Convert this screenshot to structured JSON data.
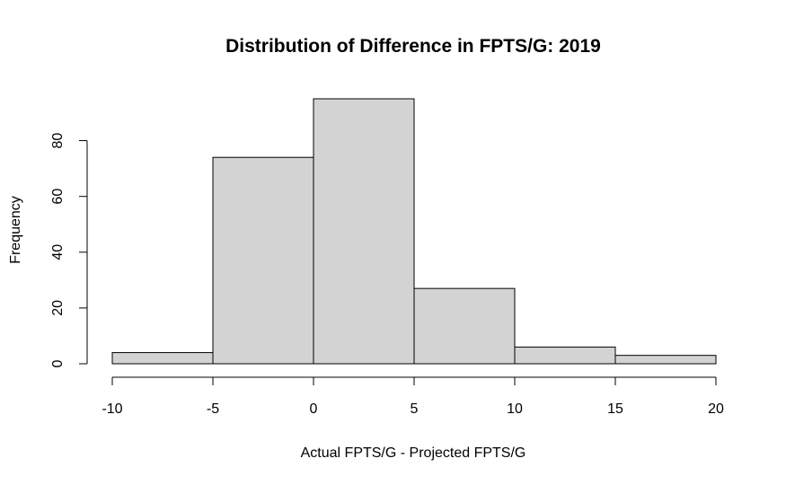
{
  "chart_data": {
    "type": "bar",
    "title": "Distribution of Difference in FPTS/G: 2019",
    "xlabel": "Actual FPTS/G - Projected FPTS/G",
    "ylabel": "Frequency",
    "bins": [
      {
        "start": -10,
        "end": -5,
        "count": 4
      },
      {
        "start": -5,
        "end": 0,
        "count": 74
      },
      {
        "start": 0,
        "end": 5,
        "count": 95
      },
      {
        "start": 5,
        "end": 10,
        "count": 27
      },
      {
        "start": 10,
        "end": 15,
        "count": 6
      },
      {
        "start": 15,
        "end": 20,
        "count": 3
      }
    ],
    "xlim": [
      -10,
      20
    ],
    "ylim": [
      0,
      95
    ],
    "x_ticks": [
      -10,
      -5,
      0,
      5,
      10,
      15,
      20
    ],
    "y_ticks": [
      0,
      20,
      40,
      60,
      80
    ],
    "grid": false,
    "bar_color": "#d3d3d3",
    "border_color": "#000000"
  }
}
